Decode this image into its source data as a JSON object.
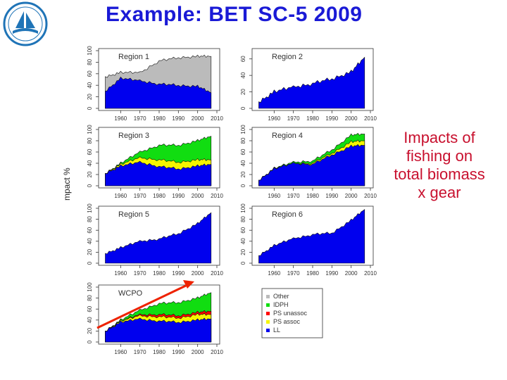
{
  "title": "Example: BET SC-5 2009",
  "side_note": [
    "Impacts of",
    "fishing on",
    "total biomass",
    "x gear"
  ],
  "y_axis_label": "mpact %",
  "colors": {
    "title": "#1a1ad6",
    "note": "#c8102e",
    "LL": "#0000ee",
    "PS_assoc": "#f5f500",
    "PS_unassoc": "#ff0000",
    "IDPH": "#11dd11",
    "Other": "#bbbbbb",
    "arrow": "#ee2200"
  },
  "chart_data": [
    {
      "type": "area",
      "title": "Region 1",
      "x": [
        1952,
        1960,
        1970,
        1980,
        1990,
        2000,
        2007
      ],
      "ylim": [
        0,
        100
      ],
      "series": [
        {
          "name": "LL",
          "values": [
            30,
            52,
            48,
            42,
            40,
            38,
            27
          ]
        },
        {
          "name": "Other",
          "values": [
            55,
            62,
            62,
            82,
            88,
            90,
            90
          ]
        }
      ]
    },
    {
      "type": "area",
      "title": "Region 2",
      "x": [
        1952,
        1960,
        1970,
        1980,
        1990,
        2000,
        2007
      ],
      "ylim": [
        0,
        70
      ],
      "series": [
        {
          "name": "LL",
          "values": [
            8,
            20,
            26,
            30,
            36,
            44,
            62
          ]
        }
      ]
    },
    {
      "type": "area",
      "title": "Region 3",
      "x": [
        1952,
        1960,
        1970,
        1980,
        1990,
        2000,
        2007
      ],
      "ylim": [
        0,
        100
      ],
      "series": [
        {
          "name": "LL",
          "values": [
            22,
            35,
            42,
            34,
            30,
            35,
            38
          ]
        },
        {
          "name": "PS_assoc",
          "values": [
            22,
            38,
            50,
            46,
            42,
            46,
            46
          ]
        },
        {
          "name": "IDPH",
          "values": [
            22,
            40,
            60,
            72,
            72,
            80,
            88
          ]
        }
      ]
    },
    {
      "type": "area",
      "title": "Region 4",
      "x": [
        1952,
        1960,
        1970,
        1980,
        1990,
        2000,
        2007
      ],
      "ylim": [
        0,
        100
      ],
      "series": [
        {
          "name": "LL",
          "values": [
            10,
            30,
            40,
            38,
            55,
            70,
            72
          ]
        },
        {
          "name": "PS_assoc",
          "values": [
            10,
            30,
            40,
            40,
            58,
            78,
            80
          ]
        },
        {
          "name": "IDPH",
          "values": [
            10,
            31,
            42,
            44,
            64,
            90,
            92
          ]
        }
      ]
    },
    {
      "type": "area",
      "title": "Region 5",
      "x": [
        1952,
        1960,
        1970,
        1980,
        1990,
        2000,
        2007
      ],
      "ylim": [
        0,
        100
      ],
      "series": [
        {
          "name": "LL",
          "values": [
            18,
            28,
            40,
            44,
            54,
            72,
            92
          ]
        }
      ]
    },
    {
      "type": "area",
      "title": "Region 6",
      "x": [
        1952,
        1960,
        1970,
        1980,
        1990,
        2000,
        2007
      ],
      "ylim": [
        0,
        100
      ],
      "series": [
        {
          "name": "LL",
          "values": [
            14,
            32,
            45,
            52,
            55,
            78,
            98
          ]
        }
      ]
    },
    {
      "type": "area",
      "title": "WCPO",
      "x": [
        1952,
        1960,
        1970,
        1980,
        1990,
        2000,
        2007
      ],
      "ylim": [
        0,
        100
      ],
      "series": [
        {
          "name": "LL",
          "values": [
            20,
            36,
            42,
            38,
            36,
            40,
            42
          ]
        },
        {
          "name": "PS_assoc",
          "values": [
            20,
            38,
            48,
            46,
            44,
            50,
            50
          ]
        },
        {
          "name": "PS_unassoc",
          "values": [
            20,
            38,
            50,
            50,
            48,
            54,
            56
          ]
        },
        {
          "name": "IDPH",
          "values": [
            20,
            40,
            58,
            70,
            72,
            80,
            90
          ]
        }
      ]
    }
  ],
  "x_ticks": [
    "1960",
    "1970",
    "1980",
    "1990",
    "2000",
    "2010"
  ],
  "legend": [
    {
      "key": "Other",
      "label": "Other"
    },
    {
      "key": "IDPH",
      "label": "IDPH"
    },
    {
      "key": "PS_unassoc",
      "label": "PS unassoc"
    },
    {
      "key": "PS_assoc",
      "label": "PS assoc"
    },
    {
      "key": "LL",
      "label": "LL"
    }
  ]
}
